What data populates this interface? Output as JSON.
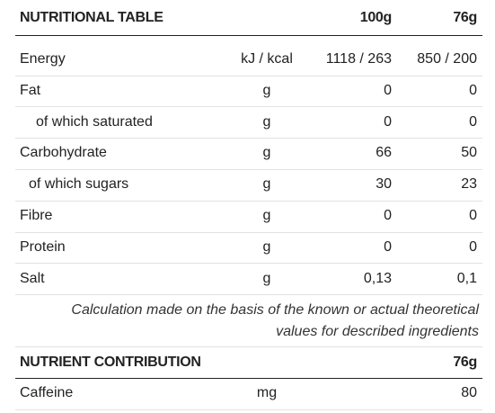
{
  "nutritional_table": {
    "header": [
      "NUTRITIONAL TABLE",
      "100g",
      "76g"
    ],
    "rows": [
      [
        "Energy",
        "kJ / kcal",
        "1118 / 263",
        "850 / 200"
      ],
      [
        "Fat",
        "g",
        "0",
        "0"
      ],
      [
        "of which saturated",
        "g",
        "0",
        "0"
      ],
      [
        "Carbohydrate",
        "g",
        "66",
        "50"
      ],
      [
        "of which sugars",
        "g",
        "30",
        "23"
      ],
      [
        "Fibre",
        "g",
        "0",
        "0"
      ],
      [
        "Protein",
        "g",
        "0",
        "0"
      ],
      [
        "Salt",
        "g",
        "0,13",
        "0,1"
      ]
    ],
    "note": "Calculation made on the basis of the known or actual theoretical values for described ingredients"
  },
  "nutrient_contribution": {
    "header": [
      "NUTRIENT CONTRIBUTION",
      "76g"
    ],
    "rows": [
      [
        "Caffeine",
        "mg",
        "80"
      ]
    ]
  }
}
